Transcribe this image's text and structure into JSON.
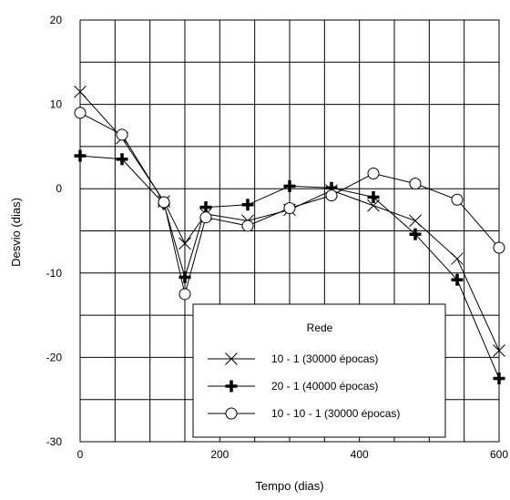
{
  "chart_data": {
    "type": "line",
    "xlabel": "Tempo (dias)",
    "ylabel": "Desvio (dias)",
    "xlim": [
      0,
      600
    ],
    "ylim": [
      -30,
      20
    ],
    "xticks": [
      0,
      200,
      400,
      600
    ],
    "yticks": [
      -30,
      -20,
      -10,
      0,
      10,
      20
    ],
    "grid": true,
    "legend": {
      "title": "Rede",
      "position": "bottom-right"
    },
    "series": [
      {
        "name": "10 - 1 (30000 épocas)",
        "marker": "x",
        "points": [
          [
            0,
            11.5
          ],
          [
            60,
            6.0
          ],
          [
            120,
            -1.5
          ],
          [
            150,
            -6.5
          ],
          [
            180,
            -3.0
          ],
          [
            240,
            -3.8
          ],
          [
            300,
            -2.5
          ],
          [
            360,
            -0.2
          ],
          [
            420,
            -2.0
          ],
          [
            480,
            -3.8
          ],
          [
            540,
            -8.3
          ],
          [
            600,
            -19.2
          ]
        ]
      },
      {
        "name": "20 - 1 (40000 épocas)",
        "marker": "plus",
        "points": [
          [
            0,
            3.9
          ],
          [
            60,
            3.5
          ],
          [
            120,
            -1.8
          ],
          [
            150,
            -10.5
          ],
          [
            180,
            -2.2
          ],
          [
            240,
            -1.9
          ],
          [
            300,
            0.3
          ],
          [
            360,
            0.1
          ],
          [
            420,
            -1.0
          ],
          [
            480,
            -5.4
          ],
          [
            540,
            -10.8
          ],
          [
            600,
            -22.5
          ]
        ]
      },
      {
        "name": "10 - 10 - 1 (30000 épocas)",
        "marker": "circle",
        "points": [
          [
            0,
            9.0
          ],
          [
            60,
            6.4
          ],
          [
            120,
            -1.6
          ],
          [
            150,
            -12.5
          ],
          [
            180,
            -3.4
          ],
          [
            240,
            -4.4
          ],
          [
            300,
            -2.3
          ],
          [
            360,
            -0.8
          ],
          [
            420,
            1.8
          ],
          [
            480,
            0.6
          ],
          [
            540,
            -1.3
          ],
          [
            600,
            -7.0
          ]
        ]
      }
    ]
  }
}
